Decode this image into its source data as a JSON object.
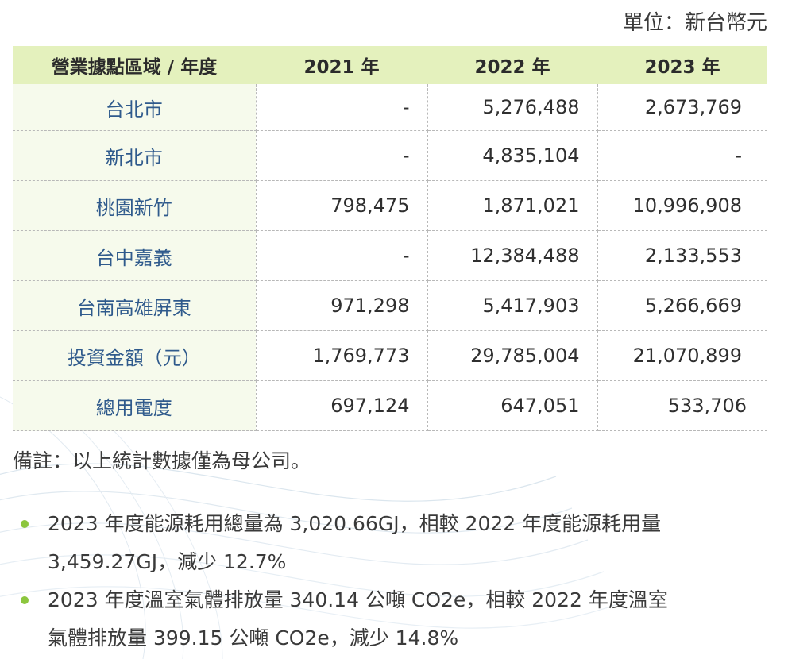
{
  "unit_label": "單位：新台幣元",
  "table": {
    "headers": [
      "營業據點區域 / 年度",
      "2021 年",
      "2022 年",
      "2023 年"
    ],
    "rows": [
      {
        "region": "台北市",
        "y2021": "-",
        "y2022": "5,276,488",
        "y2023": "2,673,769"
      },
      {
        "region": "新北市",
        "y2021": "-",
        "y2022": "4,835,104",
        "y2023": "-"
      },
      {
        "region": "桃園新竹",
        "y2021": "798,475",
        "y2022": "1,871,021",
        "y2023": "10,996,908"
      },
      {
        "region": "台中嘉義",
        "y2021": "-",
        "y2022": "12,384,488",
        "y2023": "2,133,553"
      },
      {
        "region": "台南高雄屏東",
        "y2021": "971,298",
        "y2022": "5,417,903",
        "y2023": "5,266,669"
      },
      {
        "region": "投資金額（元）",
        "y2021": "1,769,773",
        "y2022": "29,785,004",
        "y2023": "21,070,899"
      },
      {
        "region": "總用電度",
        "y2021": "697,124",
        "y2022": "647,051",
        "y2023": "533,706"
      }
    ]
  },
  "note": "備註：以上統計數據僅為母公司。",
  "bullets": [
    {
      "line1": "2023 年度能源耗用總量為 3,020.66GJ，相較 2022 年度能源耗用量",
      "line2": "3,459.27GJ，減少 12.7%"
    },
    {
      "line1": "2023 年度溫室氣體排放量 340.14 公噸 CO2e，相較 2022 年度溫室",
      "line2": "氣體排放量 399.15 公噸 CO2e，減少 14.8%"
    }
  ],
  "colors": {
    "header_bg": "#e4f1bd",
    "region_text": "#2f5a8c",
    "bullet_dot": "#8cc63e"
  }
}
